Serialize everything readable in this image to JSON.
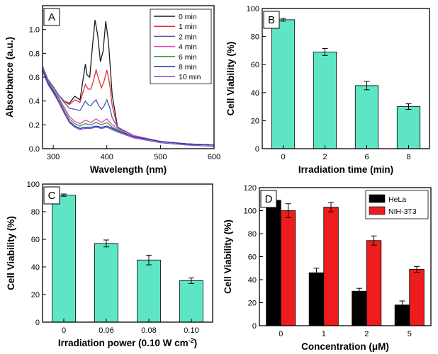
{
  "chart_data": [
    {
      "panel": "A",
      "type": "line",
      "xlabel": "Wavelength (nm)",
      "ylabel": "Absorbance (a.u.)",
      "xlim": [
        280,
        600
      ],
      "ylim": [
        0.0,
        1.2
      ],
      "xticks": [
        300,
        400,
        500,
        600
      ],
      "yticks": [
        0.0,
        0.2,
        0.4,
        0.6,
        0.8,
        1.0
      ],
      "grid": false,
      "legend_position": "top-right",
      "series": [
        {
          "name": "0 min",
          "color": "#1a1a1a",
          "x": [
            280,
            290,
            300,
            310,
            320,
            330,
            340,
            350,
            360,
            363,
            368,
            373,
            378,
            383,
            388,
            393,
            398,
            403,
            410,
            420,
            450,
            500,
            550,
            600
          ],
          "y": [
            0.69,
            0.58,
            0.52,
            0.45,
            0.4,
            0.38,
            0.44,
            0.41,
            0.71,
            0.62,
            0.6,
            0.85,
            1.08,
            0.95,
            0.73,
            0.82,
            1.07,
            0.9,
            0.45,
            0.18,
            0.11,
            0.06,
            0.04,
            0.03
          ]
        },
        {
          "name": "1 min",
          "color": "#e03030",
          "x": [
            280,
            290,
            300,
            310,
            320,
            330,
            340,
            350,
            360,
            365,
            370,
            375,
            380,
            385,
            390,
            395,
            400,
            405,
            410,
            420,
            450,
            500,
            550,
            600
          ],
          "y": [
            0.69,
            0.58,
            0.52,
            0.45,
            0.4,
            0.37,
            0.41,
            0.39,
            0.54,
            0.5,
            0.5,
            0.57,
            0.66,
            0.58,
            0.51,
            0.57,
            0.66,
            0.55,
            0.36,
            0.18,
            0.11,
            0.06,
            0.04,
            0.03
          ]
        },
        {
          "name": "2 min",
          "color": "#4a5ab0",
          "x": [
            280,
            290,
            300,
            310,
            320,
            330,
            340,
            350,
            360,
            365,
            370,
            375,
            380,
            385,
            390,
            395,
            400,
            405,
            410,
            420,
            450,
            500,
            550,
            600
          ],
          "y": [
            0.69,
            0.58,
            0.52,
            0.45,
            0.39,
            0.34,
            0.33,
            0.32,
            0.4,
            0.37,
            0.36,
            0.39,
            0.41,
            0.36,
            0.33,
            0.36,
            0.41,
            0.35,
            0.26,
            0.18,
            0.11,
            0.06,
            0.04,
            0.03
          ]
        },
        {
          "name": "4 min",
          "color": "#e040c0",
          "x": [
            280,
            290,
            300,
            310,
            320,
            330,
            340,
            350,
            360,
            370,
            380,
            390,
            400,
            410,
            420,
            450,
            500,
            550,
            600
          ],
          "y": [
            0.68,
            0.57,
            0.5,
            0.43,
            0.35,
            0.27,
            0.23,
            0.21,
            0.24,
            0.22,
            0.25,
            0.22,
            0.25,
            0.2,
            0.17,
            0.11,
            0.06,
            0.04,
            0.03
          ]
        },
        {
          "name": "6 min",
          "color": "#2e9e40",
          "x": [
            280,
            290,
            300,
            310,
            320,
            330,
            340,
            350,
            360,
            370,
            380,
            390,
            400,
            410,
            420,
            450,
            500,
            550,
            600
          ],
          "y": [
            0.67,
            0.56,
            0.49,
            0.42,
            0.33,
            0.25,
            0.21,
            0.19,
            0.21,
            0.2,
            0.22,
            0.2,
            0.22,
            0.18,
            0.16,
            0.1,
            0.06,
            0.04,
            0.03
          ]
        },
        {
          "name": "8 min",
          "color": "#2030a0",
          "x": [
            280,
            290,
            300,
            310,
            320,
            330,
            340,
            350,
            360,
            370,
            380,
            390,
            400,
            410,
            420,
            450,
            500,
            550,
            600
          ],
          "y": [
            0.66,
            0.55,
            0.48,
            0.4,
            0.31,
            0.23,
            0.19,
            0.17,
            0.18,
            0.18,
            0.19,
            0.18,
            0.19,
            0.17,
            0.15,
            0.1,
            0.06,
            0.04,
            0.03
          ]
        },
        {
          "name": "10 min",
          "color": "#8a4ad0",
          "x": [
            280,
            290,
            300,
            310,
            320,
            330,
            340,
            350,
            360,
            370,
            380,
            390,
            400,
            410,
            420,
            450,
            500,
            550,
            600
          ],
          "y": [
            0.65,
            0.54,
            0.47,
            0.39,
            0.3,
            0.22,
            0.18,
            0.16,
            0.17,
            0.17,
            0.18,
            0.17,
            0.18,
            0.16,
            0.14,
            0.09,
            0.05,
            0.03,
            0.02
          ]
        }
      ]
    },
    {
      "panel": "B",
      "type": "bar",
      "xlabel": "Irradiation time (min)",
      "ylabel": "Cell Viability (%)",
      "ylim": [
        0,
        100
      ],
      "yticks": [
        0,
        20,
        40,
        60,
        80,
        100
      ],
      "categories": [
        "0",
        "2",
        "6",
        "8"
      ],
      "series": [
        {
          "name": "Cell Viability",
          "color": "#5ee6c4",
          "values": [
            92,
            69,
            45,
            30
          ],
          "errors": [
            1,
            2.5,
            3,
            2
          ]
        }
      ]
    },
    {
      "panel": "C",
      "type": "bar",
      "xlabel": "Irradiation power (0.10 W cm",
      "xlabel_sup": "-2",
      "xlabel_end": ")",
      "ylabel": "Cell Viability (%)",
      "ylim": [
        0,
        100
      ],
      "yticks": [
        0,
        20,
        40,
        60,
        80,
        100
      ],
      "categories": [
        "0",
        "0.06",
        "0.08",
        "0.10"
      ],
      "series": [
        {
          "name": "Cell Viability",
          "color": "#5ee6c4",
          "values": [
            92,
            57,
            45,
            30
          ],
          "errors": [
            0.8,
            2.5,
            3.5,
            2
          ]
        }
      ]
    },
    {
      "panel": "D",
      "type": "bar",
      "xlabel": "Concentration (μM)",
      "ylabel": "Cell Viability (%)",
      "ylim": [
        0,
        120
      ],
      "yticks": [
        0,
        20,
        40,
        60,
        80,
        100,
        120
      ],
      "categories": [
        "0",
        "1",
        "2",
        "5"
      ],
      "legend_position": "top-right",
      "series": [
        {
          "name": "HeLa",
          "color": "#000000",
          "values": [
            109,
            46,
            30,
            18
          ],
          "errors": [
            5,
            4,
            2.5,
            3.5
          ]
        },
        {
          "name": "NIH-3T3",
          "color": "#ee1c1c",
          "values": [
            100,
            103,
            74,
            49
          ],
          "errors": [
            6,
            4,
            4,
            2.5
          ]
        }
      ]
    }
  ]
}
